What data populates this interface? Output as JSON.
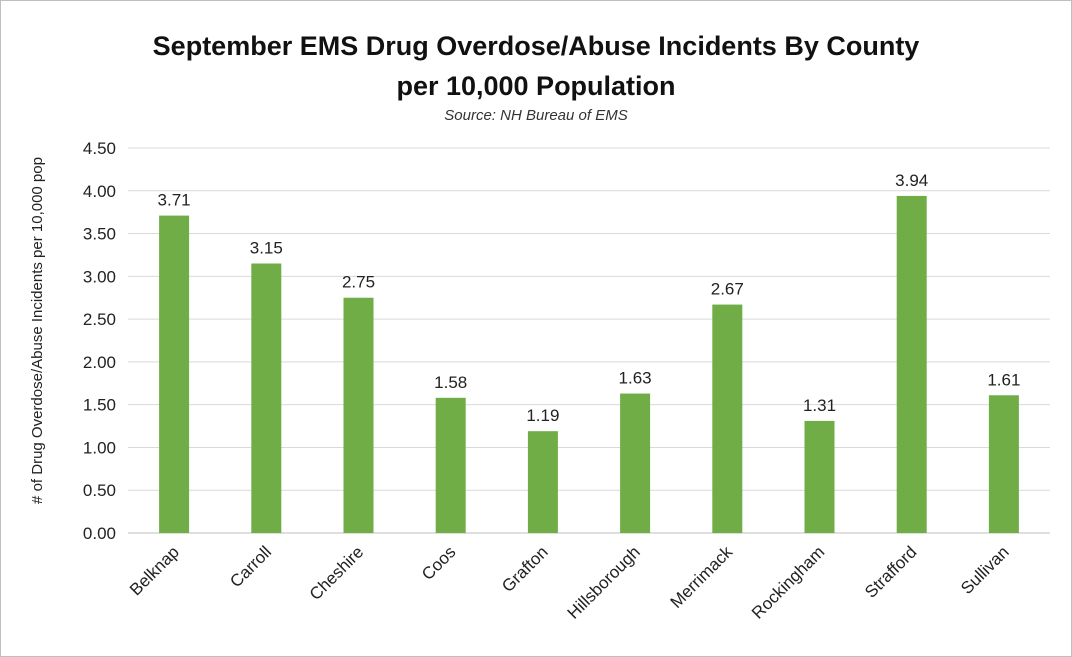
{
  "chart_data": {
    "type": "bar",
    "title_lines": [
      "September EMS Drug Overdose/Abuse Incidents By County",
      "per 10,000 Population"
    ],
    "subtitle": "Source: NH Bureau of EMS",
    "xlabel": "",
    "ylabel": "# of Drug Overdose/Abuse Incidents per 10,000 pop",
    "categories": [
      "Belknap",
      "Carroll",
      "Cheshire",
      "Coos",
      "Grafton",
      "Hillsborough",
      "Merrimack",
      "Rockingham",
      "Strafford",
      "Sullivan"
    ],
    "values": [
      3.71,
      3.15,
      2.75,
      1.58,
      1.19,
      1.63,
      2.67,
      1.31,
      3.94,
      1.61
    ],
    "data_labels": [
      "3.71",
      "3.15",
      "2.75",
      "1.58",
      "1.19",
      "1.63",
      "2.67",
      "1.31",
      "3.94",
      "1.61"
    ],
    "ylim": [
      0,
      4.5
    ],
    "yticks": [
      0,
      0.5,
      1,
      1.5,
      2,
      2.5,
      3,
      3.5,
      4,
      4.5
    ],
    "ytick_labels": [
      "0.00",
      "0.50",
      "1.00",
      "1.50",
      "2.00",
      "2.50",
      "3.00",
      "3.50",
      "4.00",
      "4.50"
    ],
    "grid": true,
    "legend": "none",
    "bar_color": "#70ad47",
    "gridline_color": "#d9d9d9"
  }
}
